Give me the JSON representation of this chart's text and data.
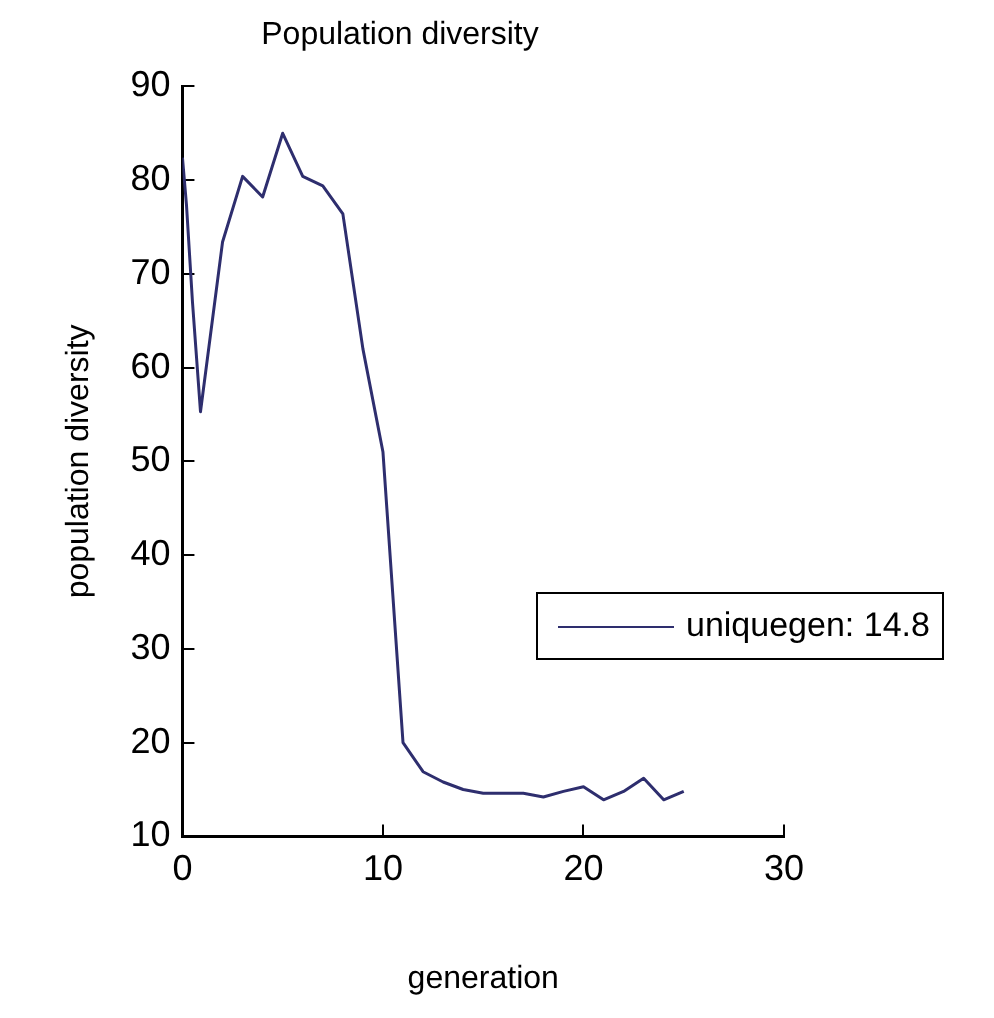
{
  "chart_data": {
    "type": "line",
    "title": "Population diversity",
    "xlabel": "generation",
    "ylabel": "population diversity",
    "xlim": [
      0,
      30
    ],
    "xticks": [
      0,
      10,
      20,
      30
    ],
    "ylim": [
      10,
      90
    ],
    "yticks": [
      10,
      20,
      30,
      40,
      50,
      60,
      70,
      80,
      90
    ],
    "grid": false,
    "legend": "right",
    "marker": "none",
    "line_style": "solid",
    "series": [
      {
        "name": "uniquegen: 14.8",
        "color": "#2e2e6e",
        "x": [
          0,
          0.2,
          0.5,
          0.9,
          2,
          3,
          4,
          5,
          6,
          7,
          8,
          9,
          10,
          11,
          12,
          13,
          14,
          15,
          16,
          17,
          18,
          19,
          20,
          21,
          22,
          23,
          24,
          25
        ],
        "values": [
          82.4,
          77.4,
          67,
          55.3,
          73.4,
          80.4,
          78.2,
          85,
          80.4,
          79.4,
          76.4,
          62,
          51,
          20,
          16.9,
          15.8,
          15,
          14.6,
          14.6,
          14.6,
          14.2,
          14.8,
          15.3,
          13.9,
          14.8,
          16.2,
          13.9,
          14.8
        ]
      }
    ]
  }
}
